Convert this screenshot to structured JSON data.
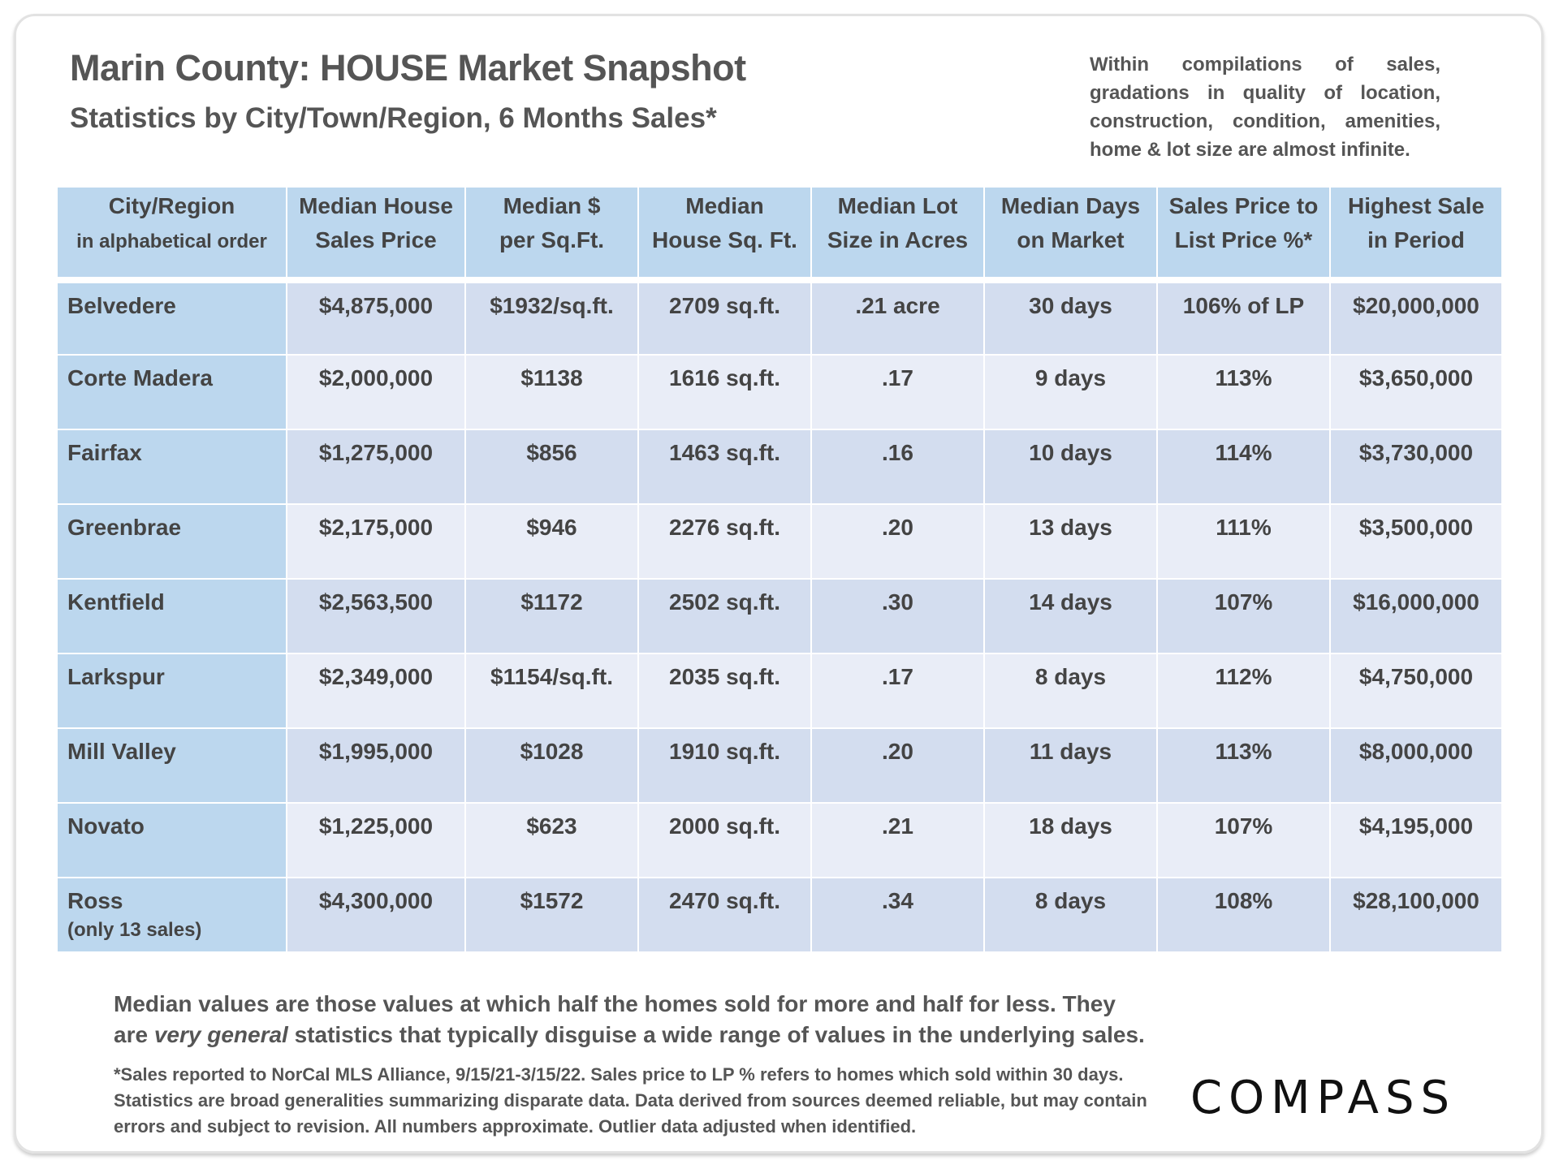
{
  "header": {
    "title": "Marin County: HOUSE Market Snapshot",
    "subtitle": "Statistics by City/Town/Region, 6 Months Sales*",
    "note": "Within compilations of sales, gradations in quality of location, construction, condition, amenities, home & lot size are almost infinite."
  },
  "table": {
    "columns": [
      {
        "line1": "City/Region",
        "line2": "in alphabetical order"
      },
      {
        "line1": "Median House",
        "line2": "Sales Price"
      },
      {
        "line1": "Median $",
        "line2": "per Sq.Ft."
      },
      {
        "line1": "Median",
        "line2": "House Sq. Ft."
      },
      {
        "line1": "Median Lot",
        "line2": "Size in Acres"
      },
      {
        "line1": "Median Days",
        "line2": "on Market"
      },
      {
        "line1": "Sales Price to",
        "line2": "List Price %*"
      },
      {
        "line1": "Highest Sale",
        "line2": "in Period"
      }
    ],
    "rows": [
      {
        "city": "Belvedere",
        "note": "",
        "cells": [
          "$4,875,000",
          "$1932/sq.ft.",
          "2709 sq.ft.",
          ".21 acre",
          "30 days",
          "106% of LP",
          "$20,000,000"
        ]
      },
      {
        "city": "Corte Madera",
        "note": "",
        "cells": [
          "$2,000,000",
          "$1138",
          "1616 sq.ft.",
          ".17",
          "9 days",
          "113%",
          "$3,650,000"
        ]
      },
      {
        "city": "Fairfax",
        "note": "",
        "cells": [
          "$1,275,000",
          "$856",
          "1463 sq.ft.",
          ".16",
          "10 days",
          "114%",
          "$3,730,000"
        ]
      },
      {
        "city": "Greenbrae",
        "note": "",
        "cells": [
          "$2,175,000",
          "$946",
          "2276 sq.ft.",
          ".20",
          "13 days",
          "111%",
          "$3,500,000"
        ]
      },
      {
        "city": "Kentfield",
        "note": "",
        "cells": [
          "$2,563,500",
          "$1172",
          "2502 sq.ft.",
          ".30",
          "14 days",
          "107%",
          "$16,000,000"
        ]
      },
      {
        "city": "Larkspur",
        "note": "",
        "cells": [
          "$2,349,000",
          "$1154/sq.ft.",
          "2035 sq.ft.",
          ".17",
          "8 days",
          "112%",
          "$4,750,000"
        ]
      },
      {
        "city": "Mill Valley",
        "note": "",
        "cells": [
          "$1,995,000",
          "$1028",
          "1910 sq.ft.",
          ".20",
          "11 days",
          "113%",
          "$8,000,000"
        ]
      },
      {
        "city": "Novato",
        "note": "",
        "cells": [
          "$1,225,000",
          "$623",
          "2000 sq.ft.",
          ".21",
          "18 days",
          "107%",
          "$4,195,000"
        ]
      },
      {
        "city": "Ross",
        "note": "(only 13 sales)",
        "cells": [
          "$4,300,000",
          "$1572",
          "2470 sq.ft.",
          ".34",
          "8 days",
          "108%",
          "$28,100,000"
        ]
      }
    ]
  },
  "footer": {
    "median_a": "Median values are those values at which half the homes sold for more and half for less. They are ",
    "median_em": "very general",
    "median_b": " statistics that typically disguise a wide range of values in the underlying sales.",
    "footnote": "*Sales reported to NorCal MLS Alliance, 9/15/21-3/15/22. Sales price to LP % refers to homes which sold within 30 days. Statistics are broad generalities summarizing disparate data. Data derived from sources deemed reliable, but may contain errors and subject to revision. All numbers approximate. Outlier data adjusted when identified.",
    "logo": "COMPASS"
  }
}
